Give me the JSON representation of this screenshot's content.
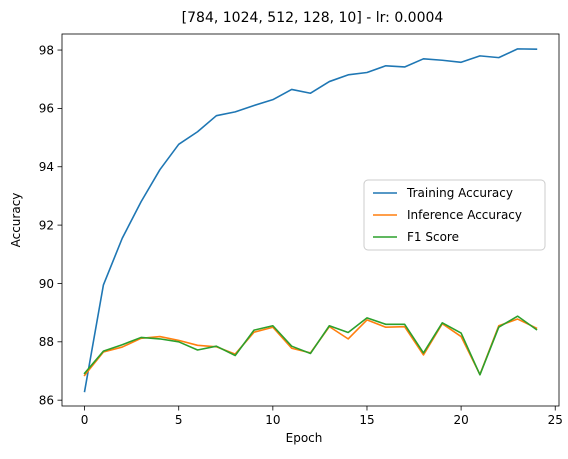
{
  "chart_data": {
    "type": "line",
    "title": "[784, 1024, 512, 128, 10] - lr: 0.0004",
    "xlabel": "Epoch",
    "ylabel": "Accuracy",
    "xlim": [
      -1.2,
      25.2
    ],
    "ylim": [
      85.8,
      98.55
    ],
    "x_ticks": [
      0,
      5,
      10,
      15,
      20,
      25
    ],
    "y_ticks": [
      86,
      88,
      90,
      92,
      94,
      96,
      98
    ],
    "legend_position": "center-right",
    "grid": false,
    "x": [
      0,
      1,
      2,
      3,
      4,
      5,
      6,
      7,
      8,
      9,
      10,
      11,
      12,
      13,
      14,
      15,
      16,
      17,
      18,
      19,
      20,
      21,
      22,
      23,
      24
    ],
    "series": [
      {
        "name": "Training Accuracy",
        "color": "#1f77b4",
        "values": [
          86.3,
          89.95,
          91.55,
          92.8,
          93.9,
          94.77,
          95.2,
          95.75,
          95.88,
          96.1,
          96.3,
          96.65,
          96.52,
          96.92,
          97.15,
          97.23,
          97.46,
          97.42,
          97.7,
          97.65,
          97.58,
          97.8,
          97.74,
          98.04,
          98.03
        ]
      },
      {
        "name": "Inference Accuracy",
        "color": "#ff7f0e",
        "values": [
          86.85,
          87.65,
          87.82,
          88.12,
          88.18,
          88.05,
          87.88,
          87.83,
          87.58,
          88.33,
          88.5,
          87.78,
          87.62,
          88.52,
          88.1,
          88.75,
          88.5,
          88.52,
          87.55,
          88.62,
          88.18,
          86.88,
          88.55,
          88.78,
          88.47
        ]
      },
      {
        "name": "F1 Score",
        "color": "#2ca02c",
        "values": [
          86.92,
          87.68,
          87.9,
          88.15,
          88.1,
          88.0,
          87.72,
          87.85,
          87.53,
          88.4,
          88.55,
          87.85,
          87.6,
          88.55,
          88.32,
          88.82,
          88.6,
          88.6,
          87.62,
          88.65,
          88.3,
          86.87,
          88.5,
          88.88,
          88.42
        ]
      }
    ]
  }
}
